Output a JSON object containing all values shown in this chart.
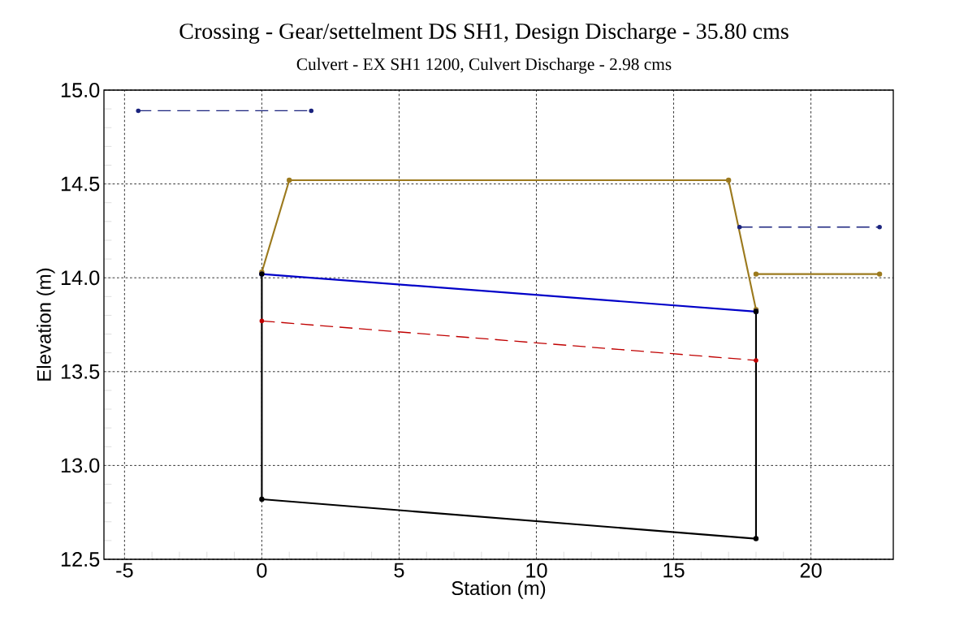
{
  "chart_data": {
    "type": "line",
    "title": "Crossing - Gear/settelment DS SH1, Design Discharge - 35.80 cms",
    "subtitle": "Culvert - EX SH1 1200, Culvert Discharge - 2.98 cms",
    "xlabel": "Station (m)",
    "ylabel": "Elevation (m)",
    "xlim": [
      -5.75,
      23
    ],
    "ylim": [
      12.5,
      15.0
    ],
    "xticks": [
      -5,
      0,
      5,
      10,
      15,
      20
    ],
    "yticks": [
      12.5,
      {
        "value": 13,
        "label": "13.0"
      },
      13.5,
      {
        "value": 14,
        "label": "14.0"
      },
      14.5,
      {
        "value": 15,
        "label": "15.0"
      }
    ],
    "grid": true,
    "marker": "circle",
    "series": [
      {
        "color": "#9c7a1e",
        "x": [
          0,
          1,
          17,
          18
        ],
        "values": [
          14.03,
          14.52,
          14.52,
          13.83
        ],
        "line_style": "solid"
      },
      {
        "color": "#9c7a1e",
        "x": [
          18,
          22.5
        ],
        "values": [
          14.02,
          14.02
        ],
        "line_style": "solid"
      },
      {
        "color": "#1a237e",
        "x": [
          -4.5,
          1.8
        ],
        "values": [
          14.89,
          14.89
        ],
        "line_style": "dashed"
      },
      {
        "color": "#1a237e",
        "x": [
          17.4,
          22.5
        ],
        "values": [
          14.27,
          14.27
        ],
        "line_style": "dashed"
      },
      {
        "color": "#0000c8",
        "x": [
          0,
          18
        ],
        "values": [
          14.02,
          13.82
        ],
        "line_style": "solid"
      },
      {
        "color": "#c00000",
        "x": [
          0,
          18
        ],
        "values": [
          13.77,
          13.56
        ],
        "line_style": "dashed"
      },
      {
        "color": "#000000",
        "x": [
          0,
          0,
          18,
          18
        ],
        "values": [
          14.02,
          12.82,
          12.61,
          13.82
        ],
        "line_style": "solid"
      }
    ]
  }
}
